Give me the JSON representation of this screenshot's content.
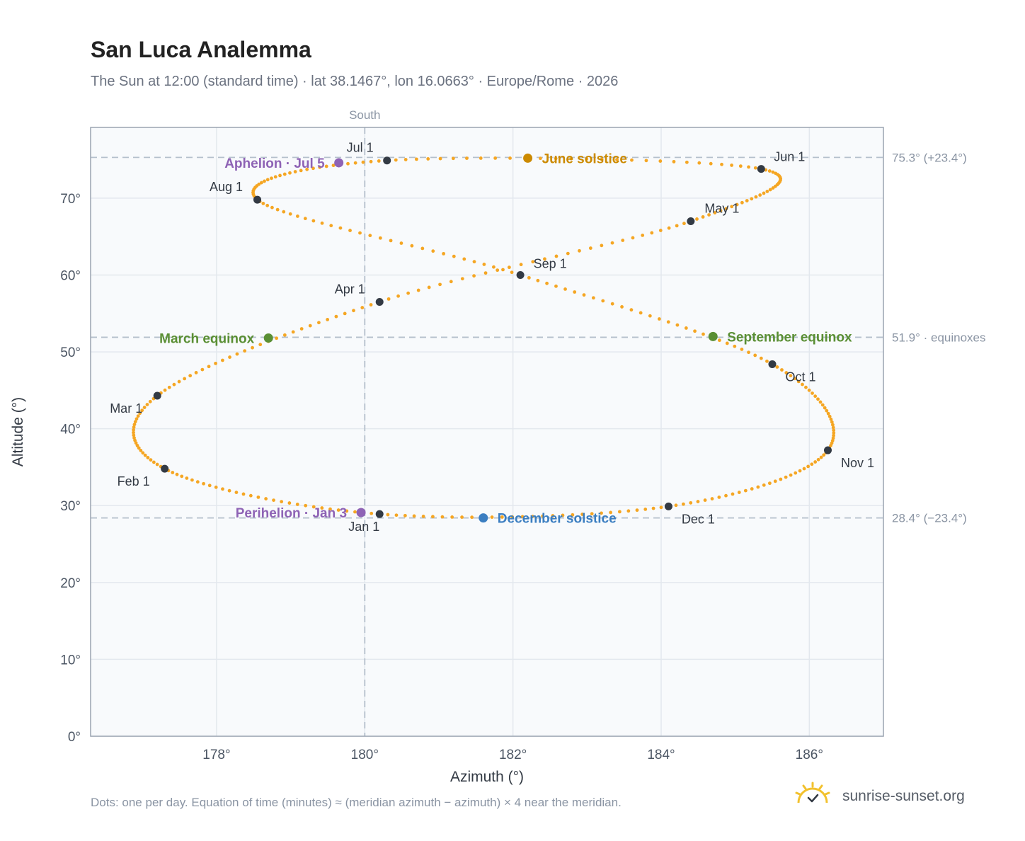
{
  "header": {
    "title": "San Luca Analemma",
    "subtitle": "The Sun at 12:00 (standard time) · lat 38.1467°, lon 16.0663° · Europe/Rome · 2026"
  },
  "footer": {
    "note": "Dots: one per day. Equation of time (minutes) ≈ (meridian azimuth − azimuth) × 4 near the meridian.",
    "brand": "sunrise-sunset.org"
  },
  "colors": {
    "curve": "#f5a623",
    "month_marker": "#333a44",
    "june_solstice": "#cc8a00",
    "december_solstice": "#3b7ec1",
    "equinox": "#5a8f34",
    "perihelion_aphelion": "#8e63b5",
    "reference_line": "#b5c0cc",
    "plot_background": "#f8fafc",
    "grid": "#e3e8ee",
    "frame": "#9aa4b1",
    "brand_logo": "#f2c12e"
  },
  "icons": {
    "brand_logo": "sun-checkmark-icon"
  },
  "chart_data": {
    "type": "scatter",
    "title": "San Luca Analemma",
    "xlabel": "Azimuth (°)",
    "ylabel": "Altitude (°)",
    "xlim": [
      176.3,
      187.0
    ],
    "ylim": [
      0,
      79.2
    ],
    "x_ticks": [
      178,
      180,
      182,
      184,
      186
    ],
    "x_tick_labels": [
      "178°",
      "180°",
      "182°",
      "184°",
      "186°"
    ],
    "y_ticks": [
      0,
      10,
      20,
      30,
      40,
      50,
      60,
      70
    ],
    "y_tick_labels": [
      "0°",
      "10°",
      "20°",
      "30°",
      "40°",
      "50°",
      "60°",
      "70°"
    ],
    "grid": true,
    "meridian": {
      "azimuth": 180,
      "label": "South"
    },
    "reference_lines": [
      {
        "altitude": 75.3,
        "label": "75.3° (+23.4°)"
      },
      {
        "altitude": 51.9,
        "label": "51.9° · equinoxes"
      },
      {
        "altitude": 28.4,
        "label": "28.4° (−23.4°)"
      }
    ],
    "daily_positions": {
      "description": "one dot per day",
      "key_points": [
        {
          "date": "Jan 1",
          "azimuth": 180.2,
          "altitude": 28.9
        },
        {
          "date": "Feb 1",
          "azimuth": 177.3,
          "altitude": 34.8
        },
        {
          "date": "Mar 1",
          "azimuth": 177.2,
          "altitude": 44.3
        },
        {
          "date": "Apr 1",
          "azimuth": 180.2,
          "altitude": 56.5
        },
        {
          "date": "May 1",
          "azimuth": 184.4,
          "altitude": 67.0
        },
        {
          "date": "Jun 1",
          "azimuth": 185.35,
          "altitude": 73.8
        },
        {
          "date": "Jul 1",
          "azimuth": 180.3,
          "altitude": 74.9
        },
        {
          "date": "Aug 1",
          "azimuth": 178.55,
          "altitude": 69.8
        },
        {
          "date": "Sep 1",
          "azimuth": 182.1,
          "altitude": 60.0
        },
        {
          "date": "Oct 1",
          "azimuth": 185.5,
          "altitude": 48.4
        },
        {
          "date": "Nov 1",
          "azimuth": 186.25,
          "altitude": 37.2
        },
        {
          "date": "Dec 1",
          "azimuth": 184.1,
          "altitude": 29.9
        }
      ]
    },
    "month_markers": [
      {
        "label": "Jan 1",
        "azimuth": 180.2,
        "altitude": 28.9
      },
      {
        "label": "Feb 1",
        "azimuth": 177.3,
        "altitude": 34.8
      },
      {
        "label": "Mar 1",
        "azimuth": 177.2,
        "altitude": 44.3
      },
      {
        "label": "Apr 1",
        "azimuth": 180.2,
        "altitude": 56.5
      },
      {
        "label": "May 1",
        "azimuth": 184.4,
        "altitude": 67.0
      },
      {
        "label": "Jun 1",
        "azimuth": 185.35,
        "altitude": 73.8
      },
      {
        "label": "Jul 1",
        "azimuth": 180.3,
        "altitude": 74.9
      },
      {
        "label": "Aug 1",
        "azimuth": 178.55,
        "altitude": 69.8
      },
      {
        "label": "Sep 1",
        "azimuth": 182.1,
        "altitude": 60.0
      },
      {
        "label": "Oct 1",
        "azimuth": 185.5,
        "altitude": 48.4
      },
      {
        "label": "Nov 1",
        "azimuth": 186.25,
        "altitude": 37.2
      },
      {
        "label": "Dec 1",
        "azimuth": 184.1,
        "altitude": 29.9
      }
    ],
    "events": [
      {
        "label": "June solstice",
        "azimuth": 182.2,
        "altitude": 75.2,
        "color": "#cc8a00"
      },
      {
        "label": "December solstice",
        "azimuth": 181.6,
        "altitude": 28.4,
        "color": "#3b7ec1"
      },
      {
        "label": "March equinox",
        "azimuth": 178.7,
        "altitude": 51.8,
        "color": "#5a8f34"
      },
      {
        "label": "September equinox",
        "azimuth": 184.7,
        "altitude": 52.0,
        "color": "#5a8f34"
      },
      {
        "label": "Perihelion · Jan 3",
        "azimuth": 179.95,
        "altitude": 29.1,
        "color": "#8e63b5"
      },
      {
        "label": "Aphelion · Jul 5",
        "azimuth": 179.65,
        "altitude": 74.6,
        "color": "#8e63b5"
      }
    ]
  }
}
